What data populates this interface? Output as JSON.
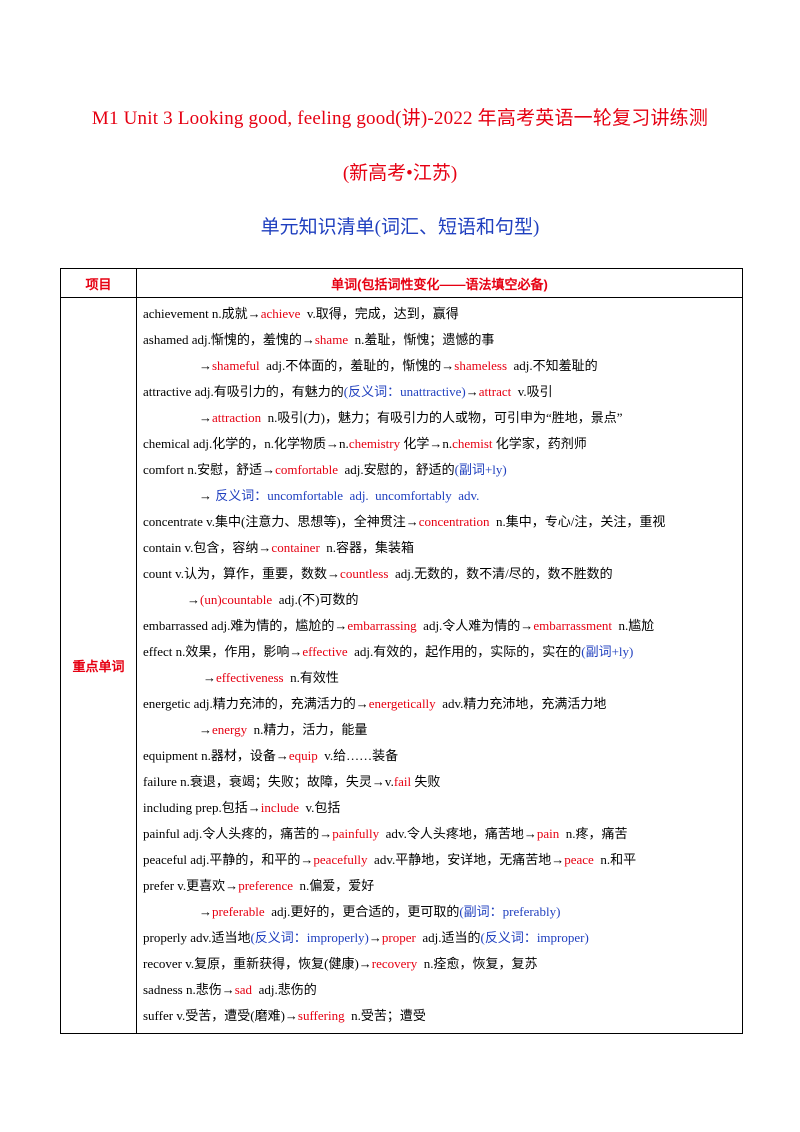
{
  "header": {
    "title_line1": "M1  Unit  3  Looking  good,  feeling  good(讲)-2022 年高考英语一轮复习讲练测",
    "title_line2": "(新高考•江苏)",
    "subtitle": "单元知识清单(词汇、短语和句型)"
  },
  "table": {
    "col1_header": "项目",
    "col2_header": "单词(包括词性变化——语法填空必备)",
    "category": "重点单词",
    "lines": [
      {
        "indent": 0,
        "segs": [
          {
            "t": "achievement n.成就→",
            "c": "k"
          },
          {
            "t": "achieve",
            "c": "r"
          },
          {
            "t": "  v.取得，完成，达到，赢得",
            "c": "k"
          }
        ]
      },
      {
        "indent": 0,
        "segs": [
          {
            "t": "ashamed adj.惭愧的，羞愧的→",
            "c": "k"
          },
          {
            "t": "shame",
            "c": "r"
          },
          {
            "t": "  n.羞耻，惭愧；遗憾的事",
            "c": "k"
          }
        ]
      },
      {
        "indent": 1,
        "segs": [
          {
            "t": "→",
            "c": "k"
          },
          {
            "t": "shameful",
            "c": "r"
          },
          {
            "t": "  adj.不体面的，羞耻的，惭愧的→",
            "c": "k"
          },
          {
            "t": "shameless",
            "c": "r"
          },
          {
            "t": "  adj.不知羞耻的",
            "c": "k"
          }
        ]
      },
      {
        "indent": 0,
        "segs": [
          {
            "t": "attractive adj.有吸引力的，有魅力的",
            "c": "k"
          },
          {
            "t": "(反义词：unattractive)",
            "c": "b"
          },
          {
            "t": "→",
            "c": "k"
          },
          {
            "t": "attract",
            "c": "r"
          },
          {
            "t": "  v.吸引",
            "c": "k"
          }
        ]
      },
      {
        "indent": 1,
        "segs": [
          {
            "t": "→",
            "c": "k"
          },
          {
            "t": "attraction",
            "c": "r"
          },
          {
            "t": "  n.吸引(力)，魅力；有吸引力的人或物，可引申为“胜地，景点”",
            "c": "k"
          }
        ]
      },
      {
        "indent": 0,
        "segs": [
          {
            "t": "chemical adj.化学的，n.化学物质→n.",
            "c": "k"
          },
          {
            "t": "chemistry",
            "c": "r"
          },
          {
            "t": " 化学→n.",
            "c": "k"
          },
          {
            "t": "chemist",
            "c": "r"
          },
          {
            "t": " 化学家，药剂师",
            "c": "k"
          }
        ]
      },
      {
        "indent": 0,
        "segs": [
          {
            "t": "comfort n.安慰，舒适→",
            "c": "k"
          },
          {
            "t": "comfortable",
            "c": "r"
          },
          {
            "t": "  adj.安慰的，舒适的",
            "c": "k"
          },
          {
            "t": "(副词+ly)",
            "c": "b"
          }
        ]
      },
      {
        "indent": 1,
        "segs": [
          {
            "t": "→ ",
            "c": "k"
          },
          {
            "t": "反义词：uncomfortable  adj.  uncomfortably  adv.",
            "c": "b"
          }
        ]
      },
      {
        "indent": 0,
        "segs": [
          {
            "t": "concentrate v.集中(注意力、思想等)，全神贯注→",
            "c": "k"
          },
          {
            "t": "concentration",
            "c": "r"
          },
          {
            "t": "  n.集中，专心/注，关注，重视",
            "c": "k"
          }
        ]
      },
      {
        "indent": 0,
        "segs": [
          {
            "t": "contain v.包含，容纳→",
            "c": "k"
          },
          {
            "t": "container",
            "c": "r"
          },
          {
            "t": "  n.容器，集装箱",
            "c": "k"
          }
        ]
      },
      {
        "indent": 0,
        "segs": [
          {
            "t": "count v.认为，算作，重要，数数→",
            "c": "k"
          },
          {
            "t": "countless",
            "c": "r"
          },
          {
            "t": "  adj.无数的，数不清/尽的，数不胜数的",
            "c": "k"
          }
        ]
      },
      {
        "indent": 3,
        "segs": [
          {
            "t": "→",
            "c": "k"
          },
          {
            "t": "(un)countable",
            "c": "r"
          },
          {
            "t": "  adj.(不)可数的",
            "c": "k"
          }
        ]
      },
      {
        "indent": 0,
        "segs": [
          {
            "t": "embarrassed adj.难为情的，尴尬的→",
            "c": "k"
          },
          {
            "t": "embarrassing",
            "c": "r"
          },
          {
            "t": "  adj.令人难为情的→",
            "c": "k"
          },
          {
            "t": "embarrassment",
            "c": "r"
          },
          {
            "t": "  n.尴尬",
            "c": "k"
          }
        ]
      },
      {
        "indent": 0,
        "segs": [
          {
            "t": "effect n.效果，作用，影响→",
            "c": "k"
          },
          {
            "t": "effective",
            "c": "r"
          },
          {
            "t": "  adj.有效的，起作用的，实际的，实在的",
            "c": "k"
          },
          {
            "t": "(副词+ly)",
            "c": "b"
          }
        ]
      },
      {
        "indent": 2,
        "segs": [
          {
            "t": "→",
            "c": "k"
          },
          {
            "t": "effectiveness",
            "c": "r"
          },
          {
            "t": "  n.有效性",
            "c": "k"
          }
        ]
      },
      {
        "indent": 0,
        "segs": [
          {
            "t": "energetic adj.精力充沛的，充满活力的→",
            "c": "k"
          },
          {
            "t": "energetically",
            "c": "r"
          },
          {
            "t": "  adv.精力充沛地，充满活力地",
            "c": "k"
          }
        ]
      },
      {
        "indent": 1,
        "segs": [
          {
            "t": "→",
            "c": "k"
          },
          {
            "t": "energy",
            "c": "r"
          },
          {
            "t": "  n.精力，活力，能量",
            "c": "k"
          }
        ]
      },
      {
        "indent": 0,
        "segs": [
          {
            "t": "equipment n.器材，设备→",
            "c": "k"
          },
          {
            "t": "equip",
            "c": "r"
          },
          {
            "t": "  v.给……装备",
            "c": "k"
          }
        ]
      },
      {
        "indent": 0,
        "segs": [
          {
            "t": "failure n.衰退，衰竭；失败；故障，失灵→v.",
            "c": "k"
          },
          {
            "t": "fail",
            "c": "r"
          },
          {
            "t": " 失败",
            "c": "k"
          }
        ]
      },
      {
        "indent": 0,
        "segs": [
          {
            "t": "including prep.包括→",
            "c": "k"
          },
          {
            "t": "include",
            "c": "r"
          },
          {
            "t": "  v.包括",
            "c": "k"
          }
        ]
      },
      {
        "indent": 0,
        "segs": [
          {
            "t": "painful adj.令人头疼的，痛苦的→",
            "c": "k"
          },
          {
            "t": "painfully",
            "c": "r"
          },
          {
            "t": "  adv.令人头疼地，痛苦地→",
            "c": "k"
          },
          {
            "t": "pain",
            "c": "r"
          },
          {
            "t": "  n.疼，痛苦",
            "c": "k"
          }
        ]
      },
      {
        "indent": 0,
        "segs": [
          {
            "t": "peaceful adj.平静的，和平的→",
            "c": "k"
          },
          {
            "t": "peacefully",
            "c": "r"
          },
          {
            "t": "  adv.平静地，安详地，无痛苦地→",
            "c": "k"
          },
          {
            "t": "peace",
            "c": "r"
          },
          {
            "t": "  n.和平",
            "c": "k"
          }
        ]
      },
      {
        "indent": 0,
        "segs": [
          {
            "t": "prefer v.更喜欢→",
            "c": "k"
          },
          {
            "t": "preference",
            "c": "r"
          },
          {
            "t": "  n.偏爱，爱好",
            "c": "k"
          }
        ]
      },
      {
        "indent": 1,
        "segs": [
          {
            "t": "→",
            "c": "k"
          },
          {
            "t": "preferable",
            "c": "r"
          },
          {
            "t": "  adj.更好的，更合适的，更可取的",
            "c": "k"
          },
          {
            "t": "(副词：preferably)",
            "c": "b"
          }
        ]
      },
      {
        "indent": 0,
        "segs": [
          {
            "t": "properly adv.适当地",
            "c": "k"
          },
          {
            "t": "(反义词：improperly)",
            "c": "b"
          },
          {
            "t": "→",
            "c": "k"
          },
          {
            "t": "proper",
            "c": "r"
          },
          {
            "t": "  adj.适当的",
            "c": "k"
          },
          {
            "t": "(反义词：improper)",
            "c": "b"
          }
        ]
      },
      {
        "indent": 0,
        "segs": [
          {
            "t": "recover v.复原，重新获得，恢复(健康)→",
            "c": "k"
          },
          {
            "t": "recovery",
            "c": "r"
          },
          {
            "t": "  n.痊愈，恢复，复苏",
            "c": "k"
          }
        ]
      },
      {
        "indent": 0,
        "segs": [
          {
            "t": "sadness n.悲伤→",
            "c": "k"
          },
          {
            "t": "sad",
            "c": "r"
          },
          {
            "t": "  adj.悲伤的",
            "c": "k"
          }
        ]
      },
      {
        "indent": 0,
        "segs": [
          {
            "t": "suffer v.受苦，遭受(磨难)→",
            "c": "k"
          },
          {
            "t": "suffering",
            "c": "r"
          },
          {
            "t": "  n.受苦；遭受",
            "c": "k"
          }
        ]
      }
    ]
  }
}
